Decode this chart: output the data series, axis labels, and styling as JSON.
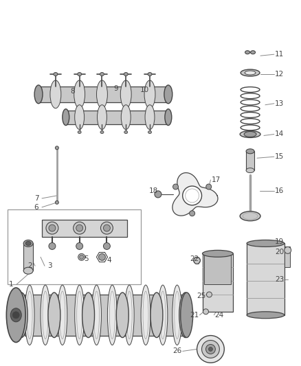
{
  "bg_color": "#ffffff",
  "fig_width": 4.38,
  "fig_height": 5.33,
  "dpi": 100,
  "label_color": "#444444",
  "line_color": "#888888",
  "drawing_color": "#444444",
  "light_gray": "#c8c8c8",
  "mid_gray": "#a0a0a0",
  "dark_gray": "#606060"
}
